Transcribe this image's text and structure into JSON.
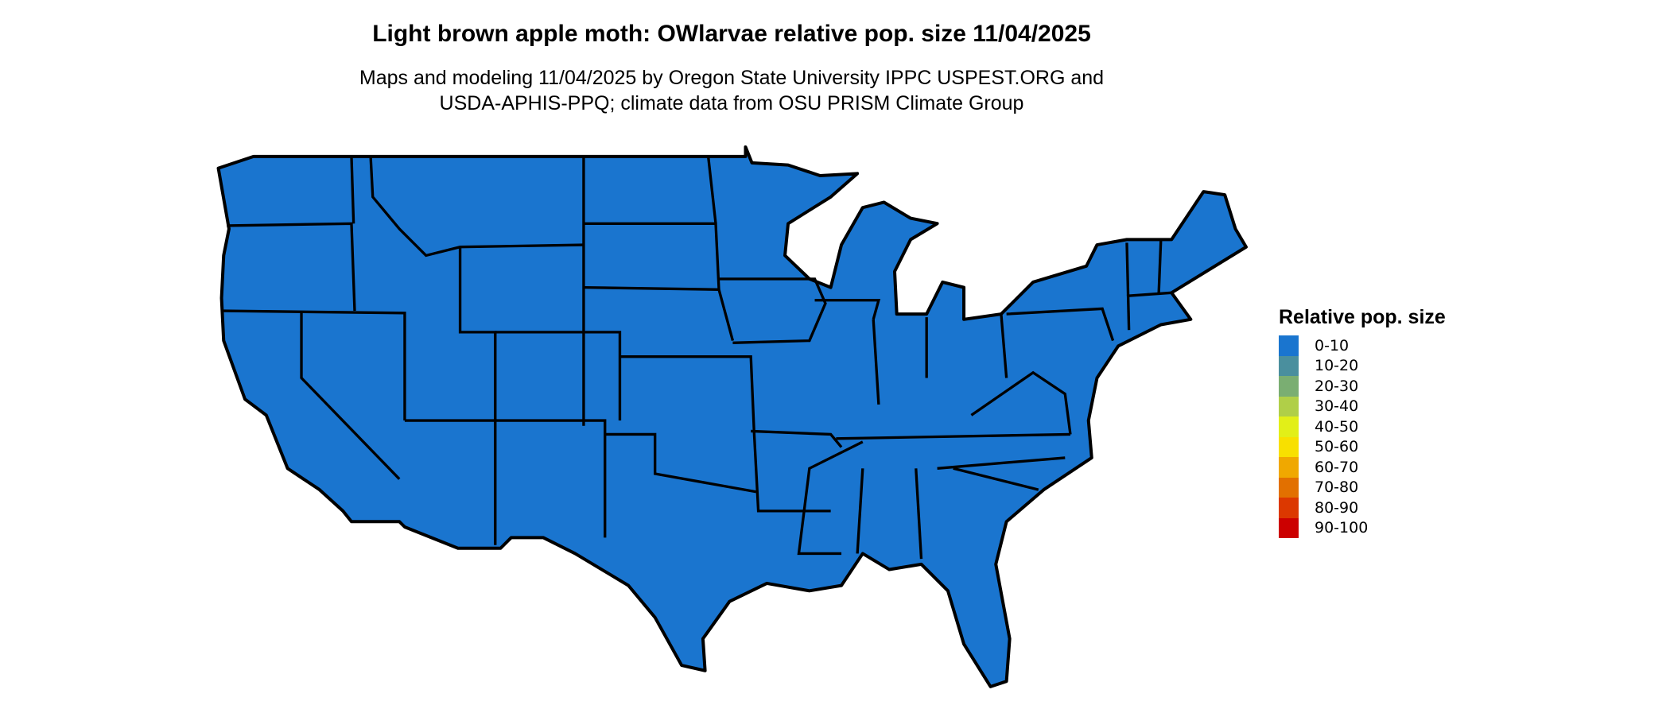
{
  "title": "Light brown apple moth: OWlarvae relative pop. size 11/04/2025",
  "subtitle_line1": "Maps and modeling 11/04/2025 by Oregon State University IPPC USPEST.ORG and",
  "subtitle_line2": "USDA-APHIS-PPQ; climate data from OSU PRISM Climate Group",
  "map": {
    "region": "Contiguous United States",
    "dominant_class": "0-10",
    "fill_color": "#1a75cf",
    "border_color": "#000000"
  },
  "legend": {
    "title": "Relative pop. size",
    "items": [
      {
        "label": "0-10",
        "color": "#1a75cf"
      },
      {
        "label": "10-20",
        "color": "#4a8f9e"
      },
      {
        "label": "20-30",
        "color": "#7aae72"
      },
      {
        "label": "30-40",
        "color": "#b0cf48"
      },
      {
        "label": "40-50",
        "color": "#e2ef18"
      },
      {
        "label": "50-60",
        "color": "#f8e000"
      },
      {
        "label": "60-70",
        "color": "#f0a800"
      },
      {
        "label": "70-80",
        "color": "#e27000"
      },
      {
        "label": "80-90",
        "color": "#dc3800"
      },
      {
        "label": "90-100",
        "color": "#cc0000"
      }
    ]
  }
}
